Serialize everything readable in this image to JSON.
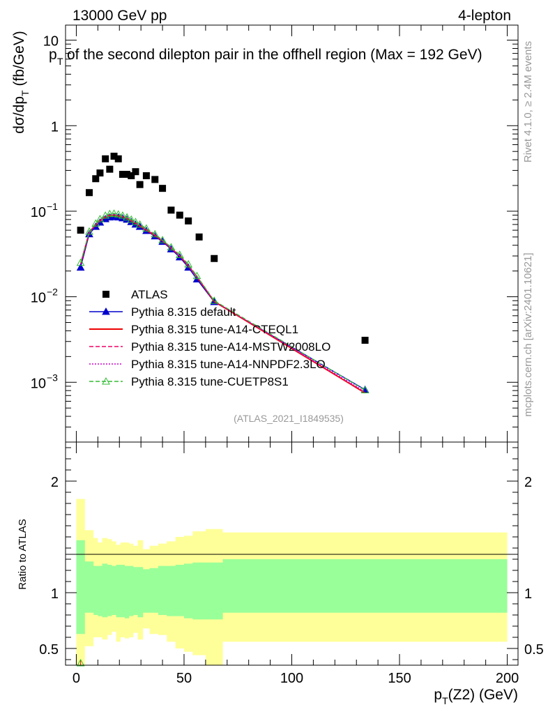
{
  "header": {
    "energy": "13000 GeV pp",
    "channel": "4-lepton",
    "title": "of the second dilepton pair in the offhell region (Max = 192 GeV)",
    "title_prefix": "p",
    "title_prefix_sub": "T",
    "watermark": "(ATLAS_2021_I1849535)",
    "side_rivet": "Rivet 4.1.0, ≥ 2.4M events",
    "side_mcplots": "mcplots.cern.ch [arXiv:2401.10621]"
  },
  "chart_data": {
    "type": "scatter",
    "title": "p_T of the second dilepton pair in the offhell region (Max = 192 GeV)",
    "ylabel_main": "dσ/dp_T (fb/GeV)",
    "ylabel_ratio": "Ratio to ATLAS",
    "xlabel": "p_T(Z2) (GeV)",
    "xlim": [
      -5,
      205
    ],
    "ylim_main": [
      0.0002,
      15
    ],
    "ylim_ratio": [
      0.35,
      2.35
    ],
    "yscale_main": "log",
    "x_ticks": [
      0,
      50,
      100,
      150,
      200
    ],
    "y_ticks_main": [
      {
        "value": 0.001,
        "label": "10",
        "exp": "−3"
      },
      {
        "value": 0.01,
        "label": "10",
        "exp": "−2"
      },
      {
        "value": 0.1,
        "label": "10",
        "exp": "−1"
      },
      {
        "value": 1,
        "label": "1",
        "exp": ""
      },
      {
        "value": 10,
        "label": "10",
        "exp": ""
      }
    ],
    "y_ticks_ratio": [
      {
        "value": 0.5,
        "label": "0.5"
      },
      {
        "value": 1,
        "label": "1"
      },
      {
        "value": 2,
        "label": "2"
      }
    ],
    "atlas": {
      "name": "ATLAS",
      "color": "#000000",
      "x": [
        2,
        6,
        9,
        11,
        13.5,
        15.5,
        17.5,
        19.5,
        21.5,
        23.5,
        25.5,
        27.5,
        29.5,
        32.5,
        36.5,
        40,
        44,
        48,
        52,
        57,
        64,
        134
      ],
      "y": [
        0.06,
        0.165,
        0.24,
        0.28,
        0.41,
        0.31,
        0.44,
        0.41,
        0.27,
        0.27,
        0.26,
        0.29,
        0.205,
        0.26,
        0.235,
        0.185,
        0.103,
        0.09,
        0.077,
        0.05,
        0.028,
        0.0031
      ]
    },
    "series": [
      {
        "name": "Pythia 8.315 default",
        "color": "#0000cc",
        "linestyle": "solid",
        "marker": "triangle-filled",
        "x": [
          2,
          6,
          9,
          11,
          13.5,
          15.5,
          17.5,
          19.5,
          21.5,
          23.5,
          25.5,
          27.5,
          29.5,
          32.5,
          36.5,
          40,
          44,
          48,
          52,
          56,
          64,
          134
        ],
        "y": [
          0.022,
          0.054,
          0.066,
          0.074,
          0.081,
          0.085,
          0.086,
          0.085,
          0.083,
          0.08,
          0.075,
          0.07,
          0.066,
          0.059,
          0.051,
          0.044,
          0.036,
          0.029,
          0.022,
          0.016,
          0.0087,
          0.00082
        ]
      },
      {
        "name": "Pythia 8.315 tune-A14-CTEQL1",
        "color": "#ee0000",
        "linestyle": "solid",
        "marker": "none",
        "x": [
          2,
          6,
          9,
          11,
          13.5,
          15.5,
          17.5,
          19.5,
          21.5,
          23.5,
          25.5,
          27.5,
          29.5,
          32.5,
          36.5,
          40,
          44,
          48,
          52,
          56,
          64,
          134
        ],
        "y": [
          0.024,
          0.057,
          0.069,
          0.078,
          0.085,
          0.089,
          0.09,
          0.088,
          0.086,
          0.082,
          0.077,
          0.072,
          0.067,
          0.06,
          0.052,
          0.045,
          0.037,
          0.03,
          0.023,
          0.017,
          0.0088,
          0.00075
        ]
      },
      {
        "name": "Pythia 8.315 tune-A14-MSTW2008LO",
        "color": "#ee0066",
        "linestyle": "dashed",
        "marker": "none",
        "x": [
          2,
          6,
          9,
          11,
          13.5,
          15.5,
          17.5,
          19.5,
          21.5,
          23.5,
          25.5,
          27.5,
          29.5,
          32.5,
          36.5,
          40,
          44,
          48,
          52,
          56,
          64,
          134
        ],
        "y": [
          0.024,
          0.057,
          0.07,
          0.078,
          0.086,
          0.09,
          0.091,
          0.089,
          0.087,
          0.083,
          0.078,
          0.073,
          0.068,
          0.061,
          0.053,
          0.045,
          0.037,
          0.03,
          0.023,
          0.017,
          0.0089,
          0.00076
        ]
      },
      {
        "name": "Pythia 8.315 tune-A14-NNPDF2.3LO",
        "color": "#cc00cc",
        "linestyle": "dotted",
        "marker": "none",
        "x": [
          2,
          6,
          9,
          11,
          13.5,
          15.5,
          17.5,
          19.5,
          21.5,
          23.5,
          25.5,
          27.5,
          29.5,
          32.5,
          36.5,
          40,
          44,
          48,
          52,
          56,
          64,
          134
        ],
        "y": [
          0.024,
          0.057,
          0.07,
          0.079,
          0.087,
          0.091,
          0.092,
          0.09,
          0.087,
          0.083,
          0.078,
          0.073,
          0.068,
          0.061,
          0.053,
          0.045,
          0.037,
          0.03,
          0.023,
          0.017,
          0.0089,
          0.00078
        ]
      },
      {
        "name": "Pythia 8.315 tune-CUETP8S1",
        "color": "#33bb33",
        "linestyle": "dashed",
        "marker": "triangle-open",
        "x": [
          2,
          6,
          9,
          11,
          13.5,
          15.5,
          17.5,
          19.5,
          21.5,
          23.5,
          25.5,
          27.5,
          29.5,
          32.5,
          36.5,
          40,
          44,
          48,
          52,
          56,
          64,
          134
        ],
        "y": [
          0.025,
          0.058,
          0.072,
          0.081,
          0.089,
          0.093,
          0.094,
          0.092,
          0.089,
          0.085,
          0.08,
          0.075,
          0.07,
          0.063,
          0.054,
          0.046,
          0.038,
          0.031,
          0.024,
          0.0175,
          0.009,
          0.00081
        ]
      }
    ],
    "ratio_bands": {
      "inner_color": "#99ff99",
      "outer_color": "#ffff99",
      "edges": [
        0,
        4,
        8,
        10,
        12,
        14.5,
        16.5,
        18.5,
        20.5,
        22.5,
        24.5,
        26.5,
        28.5,
        31,
        34,
        38,
        42,
        46,
        50,
        54,
        60,
        68,
        200
      ],
      "inner_lo": [
        0.63,
        0.82,
        0.8,
        0.79,
        0.78,
        0.79,
        0.8,
        0.78,
        0.78,
        0.77,
        0.79,
        0.8,
        0.78,
        0.82,
        0.82,
        0.8,
        0.79,
        0.79,
        0.77,
        0.76,
        0.76,
        0.82
      ],
      "inner_hi": [
        1.47,
        1.28,
        1.24,
        1.24,
        1.26,
        1.25,
        1.24,
        1.25,
        1.25,
        1.24,
        1.24,
        1.23,
        1.23,
        1.21,
        1.22,
        1.24,
        1.24,
        1.25,
        1.26,
        1.27,
        1.27,
        1.3
      ],
      "outer_lo": [
        0.35,
        0.52,
        0.6,
        0.6,
        0.58,
        0.62,
        0.65,
        0.56,
        0.6,
        0.59,
        0.6,
        0.64,
        0.58,
        0.68,
        0.63,
        0.62,
        0.56,
        0.5,
        0.47,
        0.44,
        0.35,
        0.56
      ],
      "outer_hi": [
        1.84,
        1.56,
        1.49,
        1.45,
        1.49,
        1.48,
        1.46,
        1.43,
        1.45,
        1.45,
        1.44,
        1.42,
        1.47,
        1.39,
        1.42,
        1.44,
        1.46,
        1.5,
        1.51,
        1.55,
        1.57,
        1.54
      ]
    }
  }
}
